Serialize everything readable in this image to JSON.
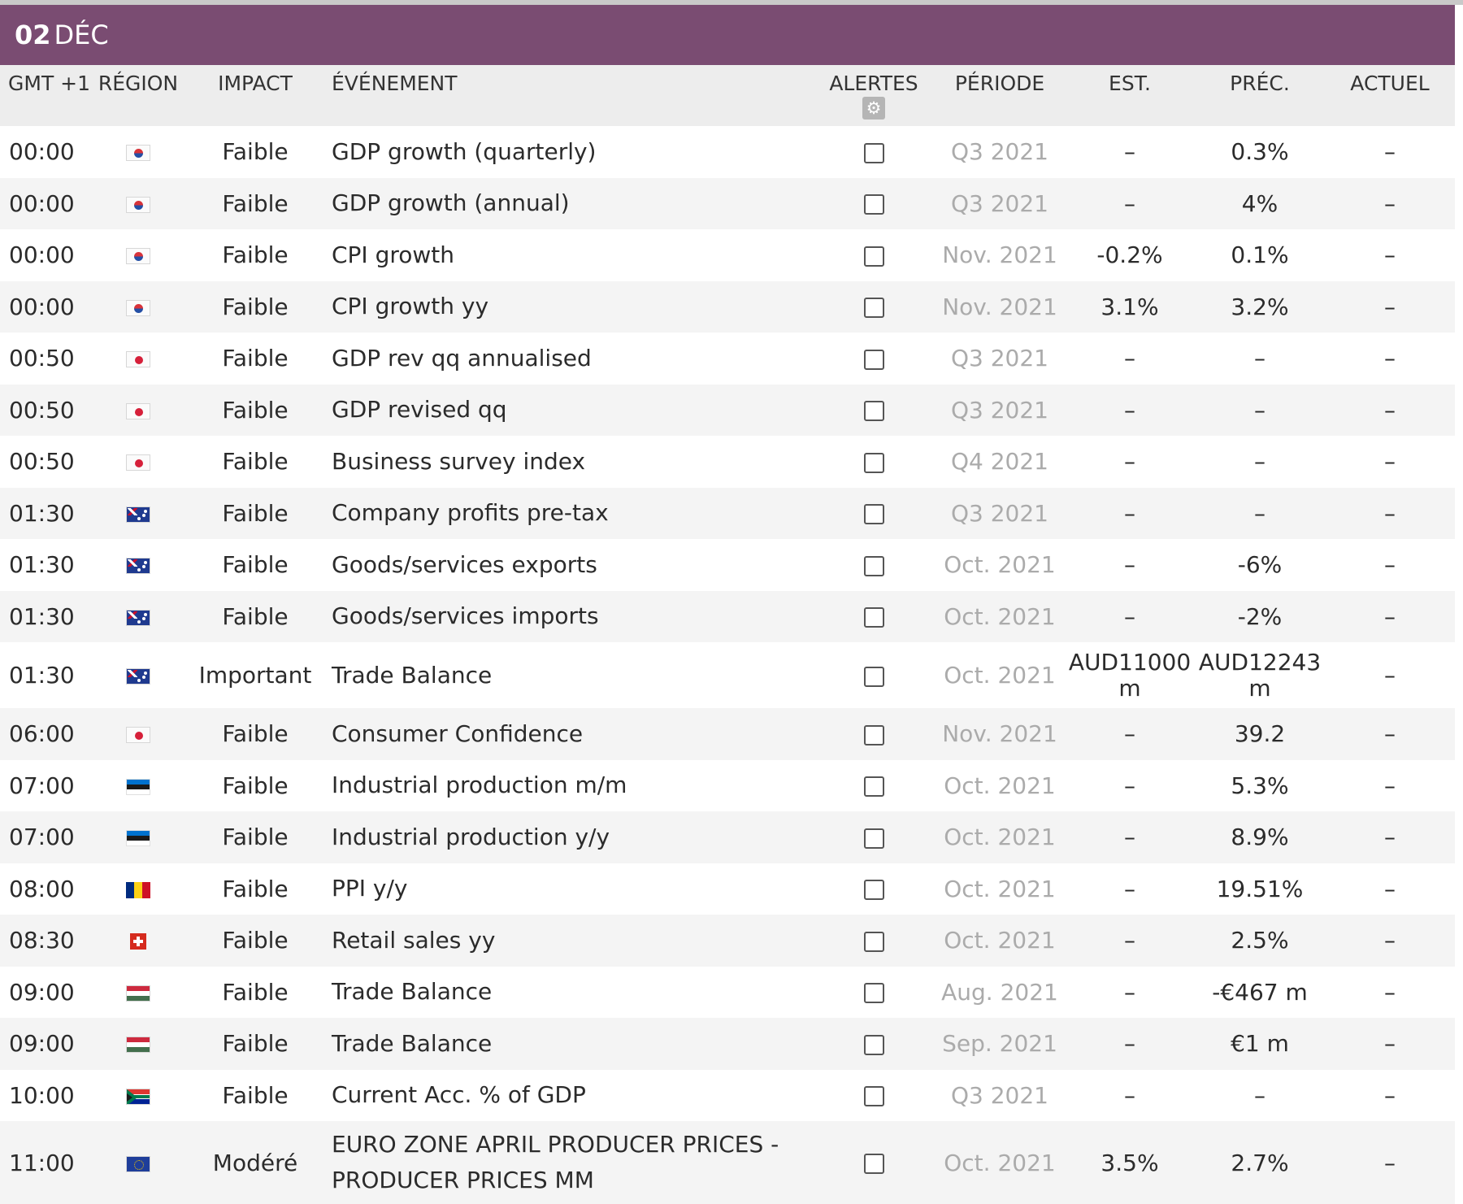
{
  "date": {
    "day": "02",
    "month": "DÉC"
  },
  "colors": {
    "accent": "#7a4c72",
    "header_bg": "#ededed",
    "period_text": "#ababab"
  },
  "columns": {
    "time": "GMT +1",
    "region": "RÉGION",
    "impact": "IMPACT",
    "event": "ÉVÉNEMENT",
    "alerts": "ALERTES",
    "period": "PÉRIODE",
    "est": "EST.",
    "prev": "PRÉC.",
    "actual": "ACTUEL"
  },
  "alerts_settings_icon": "gear-icon",
  "rows": [
    {
      "time": "00:00",
      "flag": "kr",
      "impact": "Faible",
      "event": "GDP growth (quarterly)",
      "period": "Q3 2021",
      "est": "–",
      "prev": "0.3%",
      "actual": "–"
    },
    {
      "time": "00:00",
      "flag": "kr",
      "impact": "Faible",
      "event": "GDP growth (annual)",
      "period": "Q3 2021",
      "est": "–",
      "prev": "4%",
      "actual": "–"
    },
    {
      "time": "00:00",
      "flag": "kr",
      "impact": "Faible",
      "event": "CPI growth",
      "period": "Nov. 2021",
      "est": "-0.2%",
      "prev": "0.1%",
      "actual": "–"
    },
    {
      "time": "00:00",
      "flag": "kr",
      "impact": "Faible",
      "event": "CPI growth yy",
      "period": "Nov. 2021",
      "est": "3.1%",
      "prev": "3.2%",
      "actual": "–"
    },
    {
      "time": "00:50",
      "flag": "jp",
      "impact": "Faible",
      "event": "GDP rev qq annualised",
      "period": "Q3 2021",
      "est": "–",
      "prev": "–",
      "actual": "–"
    },
    {
      "time": "00:50",
      "flag": "jp",
      "impact": "Faible",
      "event": "GDP revised qq",
      "period": "Q3 2021",
      "est": "–",
      "prev": "–",
      "actual": "–"
    },
    {
      "time": "00:50",
      "flag": "jp",
      "impact": "Faible",
      "event": "Business survey index",
      "period": "Q4 2021",
      "est": "–",
      "prev": "–",
      "actual": "–"
    },
    {
      "time": "01:30",
      "flag": "au",
      "impact": "Faible",
      "event": "Company profits pre-tax",
      "period": "Q3 2021",
      "est": "–",
      "prev": "–",
      "actual": "–"
    },
    {
      "time": "01:30",
      "flag": "au",
      "impact": "Faible",
      "event": "Goods/services exports",
      "period": "Oct. 2021",
      "est": "–",
      "prev": "-6%",
      "actual": "–"
    },
    {
      "time": "01:30",
      "flag": "au",
      "impact": "Faible",
      "event": "Goods/services imports",
      "period": "Oct. 2021",
      "est": "–",
      "prev": "-2%",
      "actual": "–"
    },
    {
      "time": "01:30",
      "flag": "au",
      "impact": "Important",
      "event": "Trade Balance",
      "period": "Oct. 2021",
      "est": "AUD11000 m",
      "prev": "AUD12243 m",
      "actual": "–"
    },
    {
      "time": "06:00",
      "flag": "jp",
      "impact": "Faible",
      "event": "Consumer Confidence",
      "period": "Nov. 2021",
      "est": "–",
      "prev": "39.2",
      "actual": "–"
    },
    {
      "time": "07:00",
      "flag": "ee",
      "impact": "Faible",
      "event": "Industrial production m/m",
      "period": "Oct. 2021",
      "est": "–",
      "prev": "5.3%",
      "actual": "–"
    },
    {
      "time": "07:00",
      "flag": "ee",
      "impact": "Faible",
      "event": "Industrial production y/y",
      "period": "Oct. 2021",
      "est": "–",
      "prev": "8.9%",
      "actual": "–"
    },
    {
      "time": "08:00",
      "flag": "ro",
      "impact": "Faible",
      "event": "PPI y/y",
      "period": "Oct. 2021",
      "est": "–",
      "prev": "19.51%",
      "actual": "–"
    },
    {
      "time": "08:30",
      "flag": "ch",
      "impact": "Faible",
      "event": "Retail sales yy",
      "period": "Oct. 2021",
      "est": "–",
      "prev": "2.5%",
      "actual": "–"
    },
    {
      "time": "09:00",
      "flag": "hu",
      "impact": "Faible",
      "event": "Trade Balance",
      "period": "Aug. 2021",
      "est": "–",
      "prev": "-€467 m",
      "actual": "–"
    },
    {
      "time": "09:00",
      "flag": "hu",
      "impact": "Faible",
      "event": "Trade Balance",
      "period": "Sep. 2021",
      "est": "–",
      "prev": "€1 m",
      "actual": "–"
    },
    {
      "time": "10:00",
      "flag": "za",
      "impact": "Faible",
      "event": "Current Acc. % of GDP",
      "period": "Q3 2021",
      "est": "–",
      "prev": "–",
      "actual": "–"
    },
    {
      "time": "11:00",
      "flag": "eu",
      "impact": "Modéré",
      "event": "EURO ZONE APRIL PRODUCER PRICES - PRODUCER PRICES MM",
      "period": "Oct. 2021",
      "est": "3.5%",
      "prev": "2.7%",
      "actual": "–"
    }
  ]
}
